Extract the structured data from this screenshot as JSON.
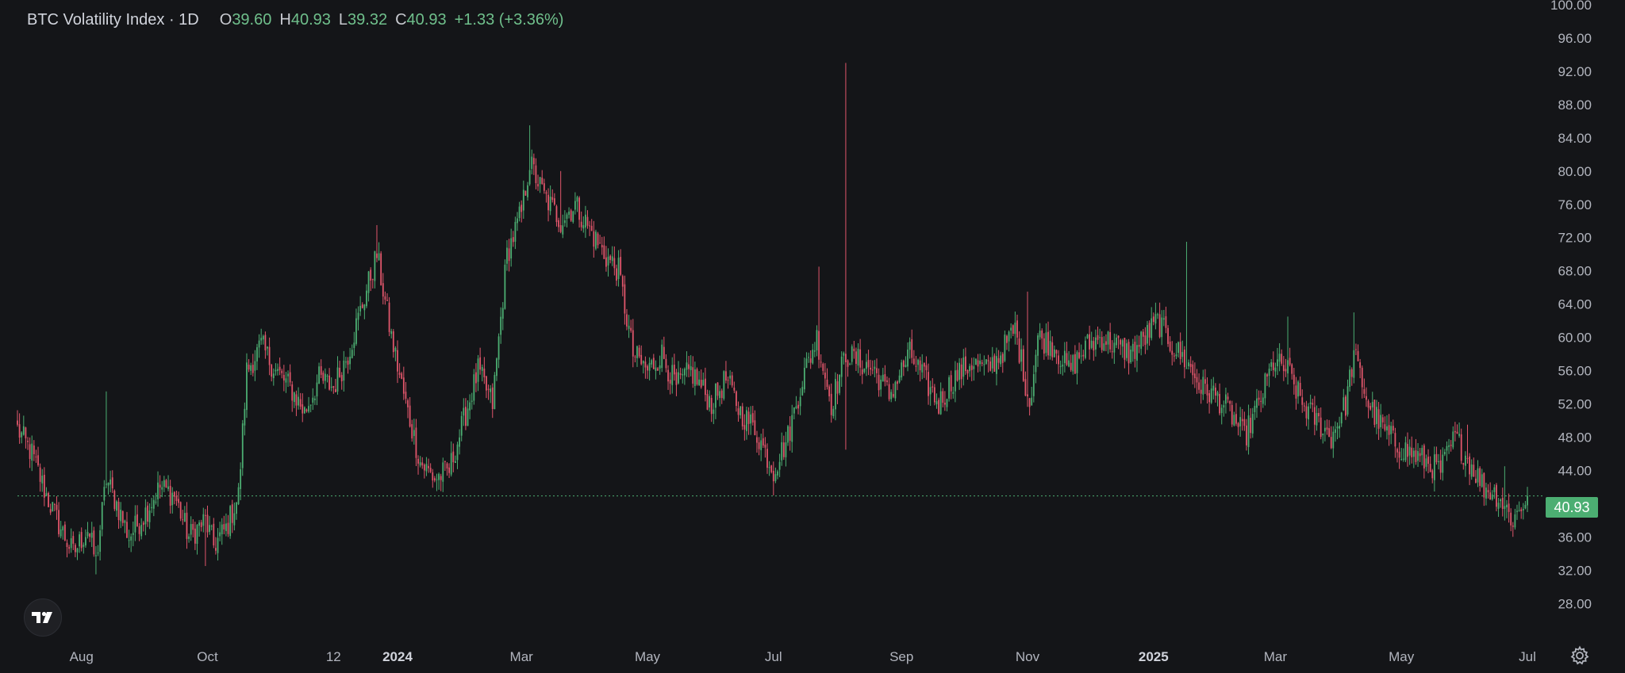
{
  "legend": {
    "title": "BTC Volatility Index · 1D",
    "open_label": "O",
    "open": "39.60",
    "high_label": "H",
    "high": "40.93",
    "low_label": "L",
    "low": "39.32",
    "close_label": "C",
    "close": "40.93",
    "change": "+1.33 (+3.36%)"
  },
  "price_label": "40.93",
  "icons": {
    "logo": "tradingview-logo-icon",
    "settings": "gear-icon"
  },
  "colors": {
    "up": "#4cae72",
    "down": "#e0566b",
    "background": "#141518",
    "last_price_line": "#4cae72"
  },
  "chart_data": {
    "type": "candlestick",
    "timeframe": "1D",
    "ylim": [
      26.5,
      100
    ],
    "y_ticks": [
      "100.00",
      "96.00",
      "92.00",
      "88.00",
      "84.00",
      "80.00",
      "76.00",
      "72.00",
      "68.00",
      "64.00",
      "60.00",
      "56.00",
      "52.00",
      "48.00",
      "44.00",
      "40.00",
      "36.00",
      "32.00",
      "28.00"
    ],
    "x_ticks": [
      {
        "label": "Aug",
        "date": "2023-08-01",
        "bold": false
      },
      {
        "label": "Oct",
        "date": "2023-10-01",
        "bold": false
      },
      {
        "label": "12",
        "date": "2023-12-01",
        "bold": false
      },
      {
        "label": "2024",
        "date": "2024-01-01",
        "bold": true
      },
      {
        "label": "Mar",
        "date": "2024-03-01",
        "bold": false
      },
      {
        "label": "May",
        "date": "2024-05-01",
        "bold": false
      },
      {
        "label": "Jul",
        "date": "2024-07-01",
        "bold": false
      },
      {
        "label": "Sep",
        "date": "2024-09-01",
        "bold": false
      },
      {
        "label": "Nov",
        "date": "2024-11-01",
        "bold": false
      },
      {
        "label": "2025",
        "date": "2025-01-01",
        "bold": true
      },
      {
        "label": "Mar",
        "date": "2025-03-01",
        "bold": false
      },
      {
        "label": "May",
        "date": "2025-05-01",
        "bold": false
      },
      {
        "label": "Jul",
        "date": "2025-07-01",
        "bold": false
      }
    ],
    "x_range": [
      "2023-07-01",
      "2025-07-01"
    ],
    "last_price": 40.93,
    "close_path": [
      [
        "2023-07-01",
        49
      ],
      [
        "2023-07-08",
        46
      ],
      [
        "2023-07-15",
        41
      ],
      [
        "2023-07-22",
        37
      ],
      [
        "2023-07-28",
        34
      ],
      [
        "2023-08-04",
        37
      ],
      [
        "2023-08-08",
        33
      ],
      [
        "2023-08-13",
        43
      ],
      [
        "2023-08-18",
        40
      ],
      [
        "2023-08-24",
        36
      ],
      [
        "2023-09-01",
        39
      ],
      [
        "2023-09-08",
        42
      ],
      [
        "2023-09-15",
        41
      ],
      [
        "2023-09-22",
        36
      ],
      [
        "2023-09-30",
        38
      ],
      [
        "2023-10-04",
        35
      ],
      [
        "2023-10-10",
        37
      ],
      [
        "2023-10-16",
        41
      ],
      [
        "2023-10-20",
        56
      ],
      [
        "2023-10-27",
        59
      ],
      [
        "2023-11-03",
        56
      ],
      [
        "2023-11-10",
        54
      ],
      [
        "2023-11-17",
        51
      ],
      [
        "2023-11-24",
        55
      ],
      [
        "2023-12-01",
        54
      ],
      [
        "2023-12-08",
        58
      ],
      [
        "2023-12-15",
        64
      ],
      [
        "2023-12-22",
        70
      ],
      [
        "2023-12-29",
        60
      ],
      [
        "2024-01-05",
        52
      ],
      [
        "2024-01-12",
        45
      ],
      [
        "2024-01-19",
        43
      ],
      [
        "2024-01-26",
        44
      ],
      [
        "2024-02-02",
        50
      ],
      [
        "2024-02-09",
        56
      ],
      [
        "2024-02-16",
        52
      ],
      [
        "2024-02-23",
        70
      ],
      [
        "2024-03-01",
        75
      ],
      [
        "2024-03-05",
        81
      ],
      [
        "2024-03-12",
        77
      ],
      [
        "2024-03-20",
        74
      ],
      [
        "2024-03-27",
        76
      ],
      [
        "2024-04-03",
        73
      ],
      [
        "2024-04-10",
        70
      ],
      [
        "2024-04-17",
        68
      ],
      [
        "2024-04-24",
        58
      ],
      [
        "2024-05-01",
        56
      ],
      [
        "2024-05-08",
        58
      ],
      [
        "2024-05-15",
        54
      ],
      [
        "2024-05-22",
        56
      ],
      [
        "2024-06-01",
        52
      ],
      [
        "2024-06-08",
        55
      ],
      [
        "2024-06-15",
        51
      ],
      [
        "2024-06-22",
        49
      ],
      [
        "2024-07-01",
        44
      ],
      [
        "2024-07-08",
        48
      ],
      [
        "2024-07-15",
        55
      ],
      [
        "2024-07-22",
        60
      ],
      [
        "2024-07-29",
        52
      ],
      [
        "2024-08-05",
        58
      ],
      [
        "2024-08-12",
        57
      ],
      [
        "2024-08-19",
        56
      ],
      [
        "2024-08-26",
        53
      ],
      [
        "2024-09-05",
        58
      ],
      [
        "2024-09-12",
        55
      ],
      [
        "2024-09-19",
        52
      ],
      [
        "2024-09-26",
        55
      ],
      [
        "2024-10-05",
        57
      ],
      [
        "2024-10-12",
        56
      ],
      [
        "2024-10-19",
        58
      ],
      [
        "2024-10-26",
        61
      ],
      [
        "2024-11-02",
        52
      ],
      [
        "2024-11-06",
        60
      ],
      [
        "2024-11-14",
        59
      ],
      [
        "2024-11-21",
        56
      ],
      [
        "2024-11-30",
        59
      ],
      [
        "2024-12-07",
        60
      ],
      [
        "2024-12-14",
        59
      ],
      [
        "2024-12-21",
        58
      ],
      [
        "2024-12-28",
        60
      ],
      [
        "2025-01-03",
        62
      ],
      [
        "2025-01-10",
        59
      ],
      [
        "2025-01-17",
        57
      ],
      [
        "2025-01-24",
        54
      ],
      [
        "2025-01-31",
        53
      ],
      [
        "2025-02-07",
        51
      ],
      [
        "2025-02-14",
        48
      ],
      [
        "2025-02-21",
        52
      ],
      [
        "2025-02-28",
        57
      ],
      [
        "2025-03-07",
        56
      ],
      [
        "2025-03-14",
        52
      ],
      [
        "2025-03-21",
        50
      ],
      [
        "2025-03-28",
        48
      ],
      [
        "2025-04-04",
        52
      ],
      [
        "2025-04-08",
        58
      ],
      [
        "2025-04-15",
        52
      ],
      [
        "2025-04-22",
        49
      ],
      [
        "2025-04-29",
        47
      ],
      [
        "2025-05-06",
        46
      ],
      [
        "2025-05-13",
        45
      ],
      [
        "2025-05-20",
        44
      ],
      [
        "2025-05-27",
        48
      ],
      [
        "2025-06-03",
        45
      ],
      [
        "2025-06-10",
        42
      ],
      [
        "2025-06-17",
        41
      ],
      [
        "2025-06-24",
        38
      ],
      [
        "2025-07-01",
        40.93
      ]
    ],
    "spikes": [
      [
        "2023-08-13",
        53.5
      ],
      [
        "2023-12-22",
        73.5
      ],
      [
        "2024-03-05",
        85.5
      ],
      [
        "2024-03-20",
        80
      ],
      [
        "2024-07-23",
        68.5
      ],
      [
        "2024-08-05",
        93
      ],
      [
        "2024-11-01",
        65.5
      ],
      [
        "2025-01-17",
        71.5
      ],
      [
        "2025-03-07",
        62.5
      ],
      [
        "2025-04-08",
        63
      ],
      [
        "2025-06-02",
        49.5
      ],
      [
        "2025-06-20",
        44.5
      ]
    ],
    "dips": [
      [
        "2023-08-08",
        31.5
      ],
      [
        "2023-09-30",
        32.5
      ],
      [
        "2024-07-01",
        41
      ],
      [
        "2024-08-05",
        46.5
      ]
    ]
  }
}
